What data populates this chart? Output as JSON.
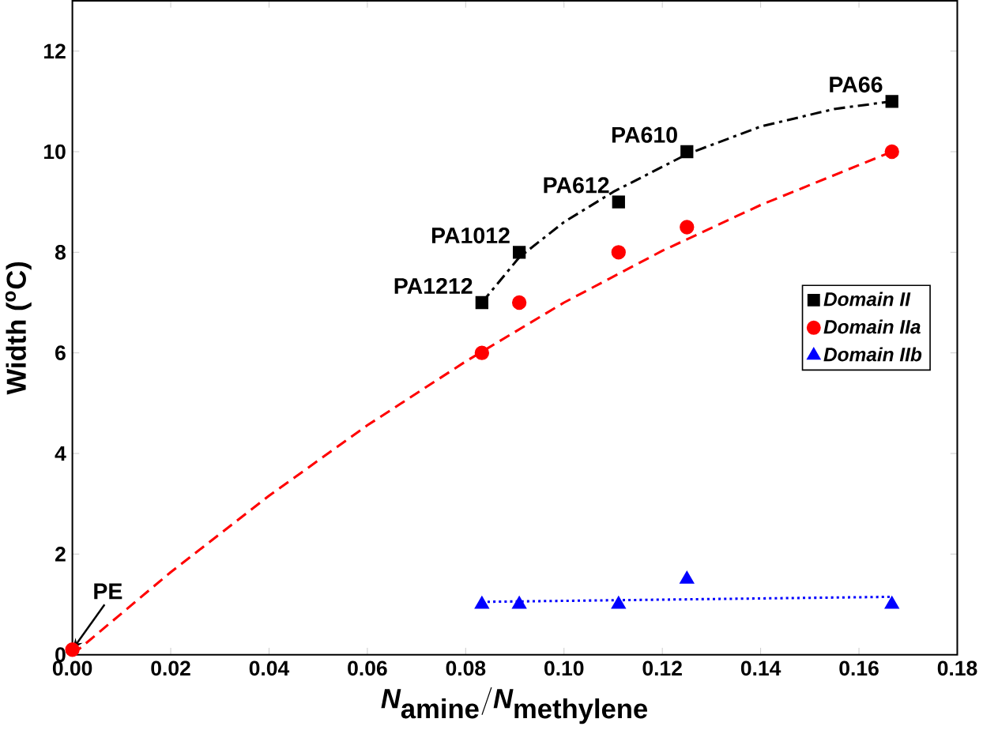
{
  "chart_data": {
    "type": "scatter",
    "xlabel": "\\textit{N}_{\\textrm{amine}}/\\textit{N}_{\\textrm{methylene}}",
    "ylabel": "Width ($^{o}$C)",
    "xlim": [
      0,
      0.18
    ],
    "ylim": [
      0,
      13
    ],
    "xticks": [
      {
        "value": 0,
        "label": "0.00"
      },
      {
        "value": 0.02,
        "label": "0.02"
      },
      {
        "value": 0.04,
        "label": "0.04"
      },
      {
        "value": 0.06,
        "label": "0.06"
      },
      {
        "value": 0.08,
        "label": "0.08"
      },
      {
        "value": 0.1,
        "label": "0.10"
      },
      {
        "value": 0.12,
        "label": "0.12"
      },
      {
        "value": 0.14,
        "label": "0.14"
      },
      {
        "value": 0.16,
        "label": "0.16"
      },
      {
        "value": 0.18,
        "label": "0.18"
      }
    ],
    "yticks": [
      0,
      2,
      4,
      6,
      8,
      10,
      12
    ],
    "legend": "right",
    "series": [
      {
        "name": "Domain II",
        "color": "#000000",
        "marker": "square",
        "x": [
          0.0833,
          0.0909,
          0.1111,
          0.125,
          0.1667
        ],
        "values": [
          7,
          8,
          9,
          10,
          11
        ]
      },
      {
        "name": "Domain IIa",
        "color": "#ff0000",
        "marker": "circle",
        "x": [
          0,
          0.0833,
          0.0909,
          0.1111,
          0.125,
          0.1667
        ],
        "values": [
          0.1,
          6,
          7,
          8,
          8.5,
          10
        ]
      },
      {
        "name": "Domain IIb",
        "color": "#0000ff",
        "marker": "triangle",
        "x": [
          0.0833,
          0.0909,
          0.1111,
          0.125,
          0.1667
        ],
        "values": [
          1,
          1,
          1,
          1.5,
          1
        ]
      },
      {
        "type": "line",
        "color": "#000000",
        "line_style": "dashdot",
        "x": [
          0.0833,
          0.0909,
          0.1,
          0.11,
          0.125,
          0.14,
          0.155,
          0.1667
        ],
        "values": [
          7,
          7.9,
          8.6,
          9.2,
          9.95,
          10.5,
          10.85,
          11
        ]
      },
      {
        "type": "line",
        "color": "#ff0000",
        "line_style": "dashed",
        "x": [
          0,
          0.02,
          0.04,
          0.06,
          0.08,
          0.1,
          0.12,
          0.14,
          0.1667
        ],
        "values": [
          0,
          1.64,
          3.16,
          4.56,
          5.83,
          7.0,
          8.03,
          8.94,
          10.0
        ]
      },
      {
        "type": "line",
        "color": "#0000ff",
        "line_style": "dotted",
        "x": [
          0.0833,
          0.1667
        ],
        "values": [
          1.05,
          1.15
        ]
      }
    ],
    "annotations": [
      {
        "text": "PE",
        "x": 0,
        "y": 0.1
      },
      {
        "text": "PA1212",
        "x": 0.0833,
        "y": 7
      },
      {
        "text": "PA1012",
        "x": 0.0909,
        "y": 8
      },
      {
        "text": "PA612",
        "x": 0.1111,
        "y": 9
      },
      {
        "text": "PA610",
        "x": 0.125,
        "y": 10
      },
      {
        "text": "PA66",
        "x": 0.1667,
        "y": 11
      }
    ]
  }
}
